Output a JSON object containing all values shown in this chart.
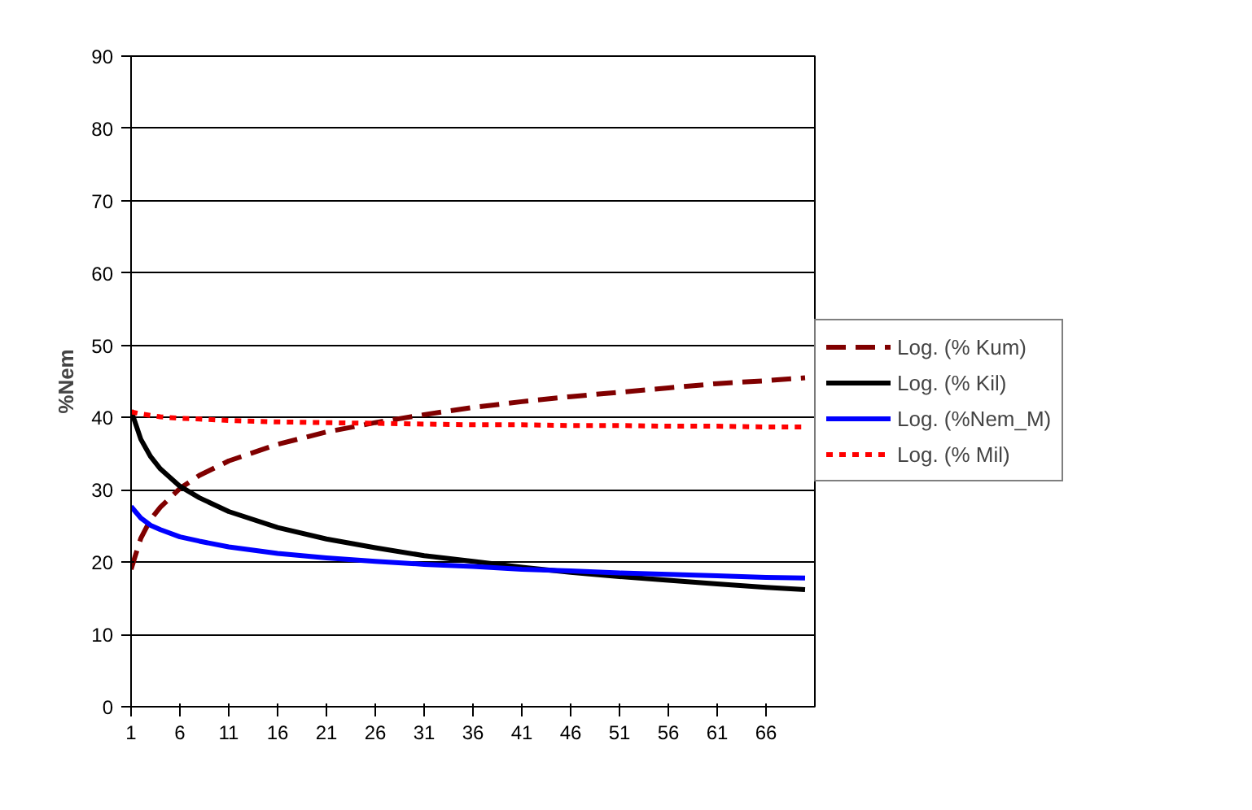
{
  "chart_data": {
    "type": "line",
    "ylabel": "%Nem",
    "x": [
      1,
      2,
      3,
      4,
      6,
      8,
      11,
      16,
      21,
      26,
      31,
      36,
      41,
      46,
      51,
      56,
      61,
      66,
      70
    ],
    "series": [
      {
        "name": "Log. (% Kum)",
        "color": "#800000",
        "line_style": "dashed",
        "values": [
          19,
          23.3,
          25.9,
          27.6,
          30.2,
          32.0,
          34.0,
          36.3,
          38.0,
          39.3,
          40.4,
          41.4,
          42.2,
          42.9,
          43.5,
          44.1,
          44.7,
          45.1,
          45.5
        ]
      },
      {
        "name": "Log. (% Kil)",
        "color": "#000000",
        "line_style": "solid",
        "values": [
          41,
          37.0,
          34.6,
          32.9,
          30.5,
          28.9,
          27.0,
          24.8,
          23.2,
          22.0,
          20.9,
          20.1,
          19.3,
          18.6,
          18.0,
          17.5,
          17.0,
          16.5,
          16.2
        ]
      },
      {
        "name": "Log. (%Nem_M)",
        "color": "#0000ff",
        "line_style": "solid",
        "values": [
          27.7,
          26.1,
          25.1,
          24.5,
          23.5,
          22.9,
          22.1,
          21.2,
          20.6,
          20.1,
          19.7,
          19.4,
          19.0,
          18.8,
          18.5,
          18.3,
          18.1,
          17.9,
          17.8
        ]
      },
      {
        "name": "Log. (% Mil)",
        "color": "#ff0000",
        "line_style": "dotted",
        "values": [
          40.8,
          40.5,
          40.3,
          40.1,
          39.9,
          39.8,
          39.6,
          39.4,
          39.3,
          39.2,
          39.1,
          39.0,
          39.0,
          38.9,
          38.9,
          38.8,
          38.8,
          38.7,
          38.7
        ]
      }
    ],
    "xlim": [
      1,
      71
    ],
    "xticks": [
      1,
      6,
      11,
      16,
      21,
      26,
      31,
      36,
      41,
      46,
      51,
      56,
      61,
      66
    ],
    "ylim": [
      0,
      90
    ],
    "yticks": [
      0,
      10,
      20,
      30,
      40,
      50,
      60,
      70,
      80,
      90
    ],
    "grid": "y",
    "legend": "right",
    "marker": "none"
  }
}
